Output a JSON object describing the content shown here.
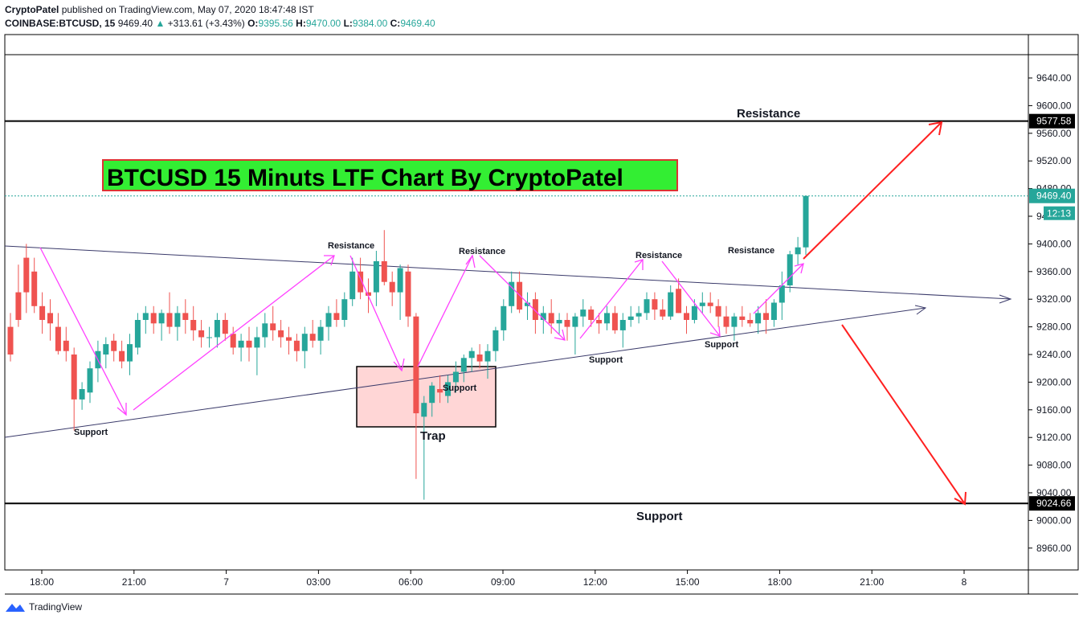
{
  "header": {
    "author": "CryptoPatel",
    "published_text": " published on TradingView.com, May 07, 2020 18:47:48 IST",
    "symbol": "COINBASE:BTCUSD, 15",
    "last": "9469.40",
    "change_arrow": "▲",
    "change": "+313.61 (+3.43%)",
    "o_label": "O:",
    "o_value": "9395.56",
    "h_label": "H:",
    "h_value": "9470.00",
    "l_label": "L:",
    "l_value": "9384.00",
    "c_label": "C:",
    "c_value": "9469.40"
  },
  "chart_title": "BTCUSD 15 Minuts LTF Chart By CryptoPatel",
  "footer": {
    "brand": "TradingView"
  },
  "chart_data": {
    "type": "candlestick",
    "ylim": [
      8920,
      9690
    ],
    "y_ticks": [
      "9640.00",
      "9600.00",
      "9560.00",
      "9520.00",
      "9480.00",
      "9440.00",
      "9400.00",
      "9360.00",
      "9320.00",
      "9280.00",
      "9240.00",
      "9200.00",
      "9160.00",
      "9120.00",
      "9080.00",
      "9040.00",
      "9000.00",
      "8960.00"
    ],
    "x_ticks": [
      "18:00",
      "21:00",
      "7",
      "03:00",
      "06:00",
      "09:00",
      "12:00",
      "15:00",
      "18:00",
      "21:00",
      "8"
    ],
    "price_labels": {
      "resistance_level": "9577.58",
      "support_level": "9024.66",
      "current": "9469.40",
      "countdown": "12:13"
    },
    "levels": {
      "resistance": 9577.58,
      "support": 9024.66,
      "current": 9469.4
    },
    "annotations": {
      "resistance_main": "Resistance",
      "support_main": "Support",
      "trap": "Trap",
      "resistance_small": "Resistance",
      "support_small": "Support"
    },
    "colors": {
      "up": "#26a69a",
      "down": "#ef5350",
      "pattern": "#ff40ff",
      "target": "#ff2020",
      "trend": "#3a3a6a",
      "title_bg": "#33ee33",
      "trap_bg": "#ffd6d6"
    },
    "candles": [
      [
        9280,
        9300,
        9230,
        9240
      ],
      [
        9330,
        9370,
        9280,
        9290
      ],
      [
        9380,
        9400,
        9300,
        9330
      ],
      [
        9360,
        9380,
        9300,
        9310
      ],
      [
        9310,
        9330,
        9270,
        9290
      ],
      [
        9300,
        9320,
        9260,
        9285
      ],
      [
        9280,
        9300,
        9240,
        9245
      ],
      [
        9260,
        9280,
        9230,
        9245
      ],
      [
        9240,
        9250,
        9130,
        9175
      ],
      [
        9175,
        9200,
        9160,
        9190
      ],
      [
        9185,
        9230,
        9170,
        9220
      ],
      [
        9220,
        9260,
        9200,
        9245
      ],
      [
        9240,
        9265,
        9220,
        9255
      ],
      [
        9260,
        9270,
        9230,
        9245
      ],
      [
        9245,
        9260,
        9220,
        9230
      ],
      [
        9230,
        9270,
        9210,
        9255
      ],
      [
        9250,
        9300,
        9240,
        9290
      ],
      [
        9290,
        9310,
        9270,
        9300
      ],
      [
        9300,
        9310,
        9270,
        9285
      ],
      [
        9285,
        9305,
        9260,
        9300
      ],
      [
        9300,
        9330,
        9270,
        9280
      ],
      [
        9280,
        9310,
        9260,
        9300
      ],
      [
        9300,
        9320,
        9270,
        9290
      ],
      [
        9290,
        9310,
        9260,
        9275
      ],
      [
        9275,
        9290,
        9250,
        9265
      ],
      [
        9265,
        9280,
        9250,
        9265
      ],
      [
        9265,
        9300,
        9250,
        9290
      ],
      [
        9290,
        9300,
        9260,
        9270
      ],
      [
        9270,
        9280,
        9240,
        9250
      ],
      [
        9250,
        9270,
        9230,
        9260
      ],
      [
        9260,
        9280,
        9230,
        9250
      ],
      [
        9250,
        9280,
        9210,
        9265
      ],
      [
        9265,
        9300,
        9250,
        9285
      ],
      [
        9285,
        9310,
        9260,
        9275
      ],
      [
        9275,
        9290,
        9250,
        9265
      ],
      [
        9265,
        9280,
        9240,
        9260
      ],
      [
        9260,
        9270,
        9230,
        9245
      ],
      [
        9245,
        9280,
        9220,
        9270
      ],
      [
        9270,
        9290,
        9250,
        9260
      ],
      [
        9260,
        9290,
        9240,
        9280
      ],
      [
        9280,
        9310,
        9260,
        9300
      ],
      [
        9300,
        9320,
        9280,
        9290
      ],
      [
        9290,
        9330,
        9280,
        9320
      ],
      [
        9320,
        9380,
        9310,
        9360
      ],
      [
        9360,
        9380,
        9320,
        9330
      ],
      [
        9330,
        9350,
        9300,
        9325
      ],
      [
        9330,
        9390,
        9310,
        9375
      ],
      [
        9375,
        9420,
        9340,
        9345
      ],
      [
        9345,
        9360,
        9310,
        9330
      ],
      [
        9330,
        9370,
        9290,
        9365
      ],
      [
        9360,
        9370,
        9280,
        9295
      ],
      [
        9295,
        9300,
        9060,
        9155
      ],
      [
        9150,
        9180,
        9030,
        9170
      ],
      [
        9170,
        9200,
        9150,
        9195
      ],
      [
        9190,
        9210,
        9170,
        9185
      ],
      [
        9180,
        9210,
        9170,
        9200
      ],
      [
        9200,
        9230,
        9185,
        9215
      ],
      [
        9215,
        9240,
        9200,
        9235
      ],
      [
        9235,
        9250,
        9215,
        9245
      ],
      [
        9240,
        9255,
        9220,
        9230
      ],
      [
        9230,
        9255,
        9205,
        9245
      ],
      [
        9245,
        9280,
        9230,
        9275
      ],
      [
        9275,
        9320,
        9260,
        9310
      ],
      [
        9310,
        9360,
        9300,
        9345
      ],
      [
        9345,
        9360,
        9300,
        9305
      ],
      [
        9310,
        9330,
        9290,
        9315
      ],
      [
        9320,
        9330,
        9270,
        9290
      ],
      [
        9290,
        9310,
        9270,
        9300
      ],
      [
        9300,
        9320,
        9270,
        9285
      ],
      [
        9285,
        9300,
        9270,
        9290
      ],
      [
        9290,
        9300,
        9260,
        9280
      ],
      [
        9280,
        9300,
        9240,
        9295
      ],
      [
        9295,
        9320,
        9280,
        9305
      ],
      [
        9305,
        9310,
        9280,
        9290
      ],
      [
        9290,
        9300,
        9270,
        9285
      ],
      [
        9285,
        9310,
        9275,
        9300
      ],
      [
        9300,
        9310,
        9270,
        9275
      ],
      [
        9275,
        9300,
        9250,
        9290
      ],
      [
        9290,
        9310,
        9280,
        9295
      ],
      [
        9295,
        9310,
        9285,
        9300
      ],
      [
        9300,
        9330,
        9290,
        9320
      ],
      [
        9320,
        9330,
        9290,
        9305
      ],
      [
        9305,
        9320,
        9290,
        9295
      ],
      [
        9295,
        9340,
        9290,
        9330
      ],
      [
        9335,
        9350,
        9300,
        9300
      ],
      [
        9300,
        9310,
        9270,
        9290
      ],
      [
        9290,
        9320,
        9285,
        9310
      ],
      [
        9310,
        9330,
        9300,
        9315
      ],
      [
        9315,
        9330,
        9300,
        9310
      ],
      [
        9310,
        9320,
        9280,
        9295
      ],
      [
        9295,
        9310,
        9270,
        9280
      ],
      [
        9280,
        9300,
        9260,
        9295
      ],
      [
        9295,
        9310,
        9280,
        9290
      ],
      [
        9290,
        9300,
        9280,
        9285
      ],
      [
        9285,
        9310,
        9270,
        9300
      ],
      [
        9300,
        9320,
        9270,
        9290
      ],
      [
        9290,
        9320,
        9280,
        9315
      ],
      [
        9315,
        9360,
        9290,
        9340
      ],
      [
        9340,
        9390,
        9330,
        9385
      ],
      [
        9385,
        9410,
        9370,
        9395
      ],
      [
        9395,
        9470,
        9384,
        9469.4
      ]
    ]
  }
}
